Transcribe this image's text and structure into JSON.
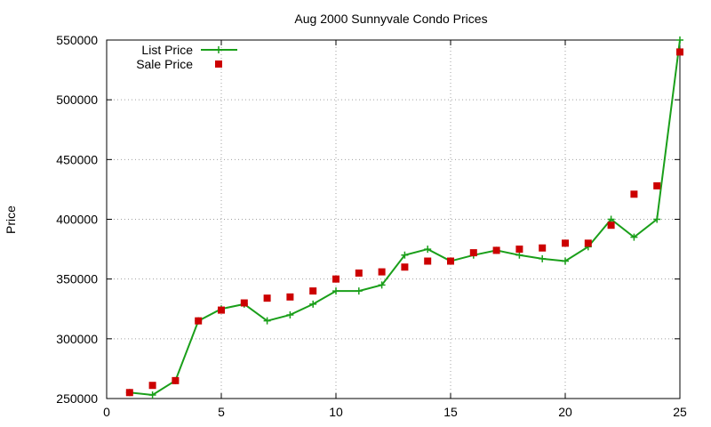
{
  "chart_data": {
    "type": "line",
    "title": "Aug 2000 Sunnyvale Condo Prices",
    "xlabel": "",
    "ylabel": "Price",
    "xlim": [
      0,
      25
    ],
    "ylim": [
      250000,
      550000
    ],
    "xticks": [
      0,
      5,
      10,
      15,
      20,
      25
    ],
    "yticks": [
      250000,
      300000,
      350000,
      400000,
      450000,
      500000,
      550000
    ],
    "grid": true,
    "legend_position": "top-left",
    "series": [
      {
        "name": "List Price",
        "style": "line-plus",
        "color": "#1a9f1a",
        "x": [
          1,
          2,
          3,
          4,
          5,
          6,
          7,
          8,
          9,
          10,
          11,
          12,
          13,
          14,
          15,
          16,
          17,
          18,
          19,
          20,
          21,
          22,
          23,
          24,
          25
        ],
        "y": [
          255000,
          253000,
          265000,
          315000,
          325000,
          329000,
          315000,
          320000,
          329000,
          340000,
          340000,
          345000,
          370000,
          375000,
          365000,
          370000,
          374000,
          370000,
          367000,
          365000,
          377000,
          400000,
          385000,
          400000,
          550000
        ]
      },
      {
        "name": "Sale Price",
        "style": "square-marker",
        "color": "#cc0000",
        "x": [
          1,
          2,
          3,
          4,
          5,
          6,
          7,
          8,
          9,
          10,
          11,
          12,
          13,
          14,
          15,
          16,
          17,
          18,
          19,
          20,
          21,
          22,
          23,
          24,
          25
        ],
        "y": [
          255000,
          261000,
          265000,
          315000,
          324000,
          330000,
          334000,
          335000,
          340000,
          350000,
          355000,
          356000,
          360000,
          365000,
          365000,
          372000,
          374000,
          375000,
          376000,
          380000,
          380000,
          395000,
          421000,
          428000,
          540000
        ]
      }
    ]
  }
}
